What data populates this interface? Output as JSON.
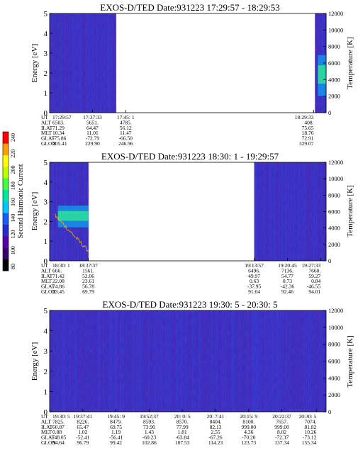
{
  "colorbar": {
    "label": "Second Harmonic Current",
    "ticks": [
      "240",
      "220",
      "200",
      "180",
      "160",
      "140",
      "120",
      "100",
      "80"
    ],
    "colors": [
      "#000000",
      "#3a006a",
      "#5a00a8",
      "#2a2ad0",
      "#1a5aff",
      "#00c8ff",
      "#00e8a0",
      "#40ff40",
      "#c0ff00",
      "#ffff00",
      "#ffa000",
      "#ff0000"
    ]
  },
  "chart_data": [
    {
      "type": "heatmap",
      "title": "EXOS-D/TED   Date:931223  17:29:57 - 18:29:53",
      "ylabel": "Energy [eV]",
      "y2label": "Temperature [K]",
      "ylim": [
        0,
        5
      ],
      "y_ticks": [
        "0",
        "1",
        "2",
        "3",
        "4",
        "5"
      ],
      "y2lim": [
        0,
        12000
      ],
      "y2_ticks": [
        "0",
        "2000",
        "4000",
        "6000",
        "8000",
        "10000",
        "12000"
      ],
      "data_spans": [
        [
          0,
          0.24
        ],
        [
          0.96,
          1
        ]
      ],
      "green_band": [
        0.85,
        2.9
      ],
      "green_band_x": [
        0.97,
        1.0
      ],
      "green_line": false,
      "row_labels": [
        "UT",
        "ALT",
        "ILAT",
        "MLT",
        "GLAT",
        "GLON"
      ],
      "columns": [
        {
          "x": 0.0,
          "values": [
            "17:29:57",
            "6503.",
            "71.29",
            "10.34",
            "-75.86",
            "205.41"
          ]
        },
        {
          "x": 0.155,
          "values": [
            "17:37:33",
            "5651.",
            "64.47",
            "11.01",
            "-72.79",
            "229.90"
          ]
        },
        {
          "x": 0.275,
          "values": [
            "17:45: 1",
            "4785.",
            "56.12",
            "11.47",
            "-66.50",
            "246.96"
          ]
        },
        {
          "x": 0.955,
          "values": [
            "18:29:33",
            "408.",
            "75.65",
            "18.76",
            "72.91",
            "329.07"
          ]
        }
      ]
    },
    {
      "type": "heatmap",
      "title": "EXOS-D/TED   Date:931223  18:30: 1 - 19:29:57",
      "ylabel": "Energy [eV]",
      "y2label": "Temperature [K]",
      "ylim": [
        0,
        5
      ],
      "y_ticks": [
        "0",
        "1",
        "2",
        "3",
        "4",
        "5"
      ],
      "y2lim": [
        0,
        12000
      ],
      "y2_ticks": [
        "0",
        "2000",
        "4000",
        "6000",
        "8000",
        "10000",
        "12000"
      ],
      "data_spans": [
        [
          0,
          0.14
        ],
        [
          0.74,
          1
        ]
      ],
      "green_band": [
        1.7,
        2.8
      ],
      "green_band_x": [
        0.03,
        0.14
      ],
      "green_line": true,
      "row_labels": [
        "UT",
        "ALT",
        "ILAT",
        "MLT",
        "GLAT",
        "GLON"
      ],
      "columns": [
        {
          "x": 0.0,
          "values": [
            "18:30: 1",
            "666.",
            "71.42",
            "22.08",
            "74.86",
            "23.45"
          ]
        },
        {
          "x": 0.14,
          "values": [
            "18:37:37",
            "1561.",
            "52.06",
            "23.61",
            "56.78",
            "69.79"
          ]
        },
        {
          "x": 0.74,
          "values": [
            "19:13:57",
            "6496.",
            "49.97",
            "0.63",
            "-37.95",
            "91.04"
          ]
        },
        {
          "x": 0.86,
          "values": [
            "19:20:45",
            "7136.",
            "54.77",
            "0.73",
            "-42.36",
            "92.46"
          ]
        },
        {
          "x": 0.98,
          "values": [
            "19:27:33",
            "7660.",
            "59.27",
            "0.84",
            "-46.55",
            "94.01"
          ]
        }
      ]
    },
    {
      "type": "heatmap",
      "title": "EXOS-D/TED   Date:931223  19:30: 5 - 20:30: 5",
      "ylabel": "Energy [eV]",
      "y2label": "Temperature [K]",
      "ylim": [
        0,
        5
      ],
      "y_ticks": [
        "0",
        "1",
        "2",
        "3",
        "4",
        "5"
      ],
      "y2lim": [
        0,
        12000
      ],
      "y2_ticks": [
        "0",
        "2000",
        "4000",
        "6000",
        "8000",
        "10000",
        "12000"
      ],
      "data_spans": [
        [
          0,
          1
        ]
      ],
      "green_band": null,
      "green_band_x": null,
      "green_line": false,
      "row_labels": [
        "UT",
        "ALT",
        "ILAT",
        "MLT",
        "GLAT",
        "GLON"
      ],
      "columns": [
        {
          "x": 0.0,
          "values": [
            "19:30: 5",
            "7825.",
            "60.87",
            "0.88",
            "-48.05",
            "94.64"
          ]
        },
        {
          "x": 0.12,
          "values": [
            "19:37:41",
            "8226.",
            "65.47",
            "1.02",
            "-52.41",
            "96.79"
          ]
        },
        {
          "x": 0.24,
          "values": [
            "19:45: 9",
            "8479.",
            "69.75",
            "1.19",
            "-56.41",
            "99.42"
          ]
        },
        {
          "x": 0.36,
          "values": [
            "19:52:37",
            "8593.",
            "73.90",
            "1.43",
            "-60.23",
            "102.86"
          ]
        },
        {
          "x": 0.48,
          "values": [
            "20: 0: 5",
            "8570.",
            "77.99",
            "1.81",
            "-63.84",
            "107.53"
          ]
        },
        {
          "x": 0.6,
          "values": [
            "20: 7:41",
            "8404.",
            "82.13",
            "2.55",
            "-67.26",
            "114.23"
          ]
        },
        {
          "x": 0.72,
          "values": [
            "20:15: 9",
            "8100.",
            "999.00",
            "4.36",
            "-70.20",
            "123.73"
          ]
        },
        {
          "x": 0.84,
          "values": [
            "20:22:37",
            "7657.",
            "999.00",
            "8.02",
            "-72.37",
            "137.34"
          ]
        },
        {
          "x": 0.965,
          "values": [
            "20:30: 5",
            "7074.",
            "81.82",
            "10.26",
            "-73.12",
            "155.34"
          ]
        }
      ]
    }
  ]
}
